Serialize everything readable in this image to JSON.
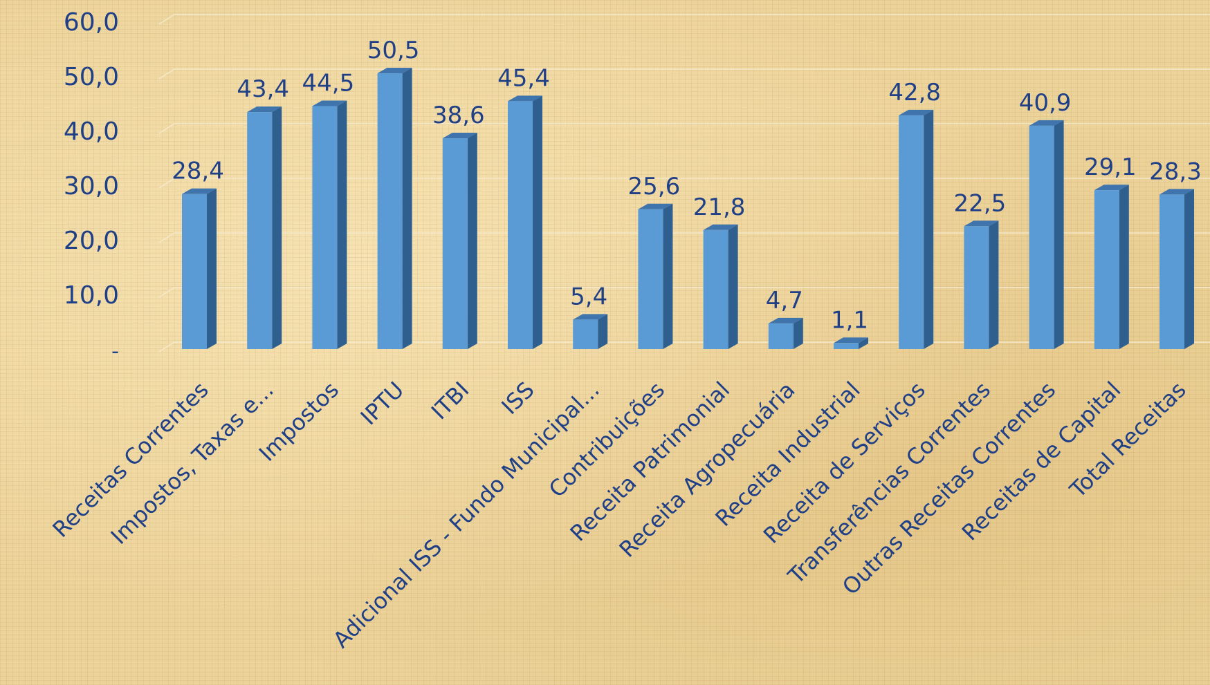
{
  "colors": {
    "bar_front": "#5b9bd5",
    "bar_side": "#2e5f8f",
    "bar_top": "#3f74ad",
    "text": "#1f3f86",
    "grid": "#f6e9c9"
  },
  "chart_data": {
    "type": "bar",
    "style": "3d-column",
    "categories": [
      "Receitas Correntes",
      "Impostos, Taxas e...",
      "Impostos",
      "IPTU",
      "ITBI",
      "ISS",
      "Adicional ISS - Fundo Municipal...",
      "Contribuições",
      "Receita Patrimonial",
      "Receita Agropecuária",
      "Receita Industrial",
      "Receita de Serviços",
      "Transferências Correntes",
      "Outras Receitas Correntes",
      "Receitas de Capital",
      "Total Receitas"
    ],
    "values": [
      28.4,
      43.4,
      44.5,
      50.5,
      38.6,
      45.4,
      5.4,
      25.6,
      21.8,
      4.7,
      1.1,
      42.8,
      22.5,
      40.9,
      29.1,
      28.3
    ],
    "value_labels": [
      "28,4",
      "43,4",
      "44,5",
      "50,5",
      "38,6",
      "45,4",
      "5,4",
      "25,6",
      "21,8",
      "4,7",
      "1,1",
      "42,8",
      "22,5",
      "40,9",
      "29,1",
      "28,3"
    ],
    "ylim": [
      0,
      60
    ],
    "yticks": [
      0,
      10,
      20,
      30,
      40,
      50,
      60
    ],
    "ytick_labels": [
      "-",
      "10,0",
      "20,0",
      "30,0",
      "40,0",
      "50,0",
      "60,0"
    ],
    "grid": true,
    "legend": "none",
    "title": "",
    "xlabel": "",
    "ylabel": ""
  }
}
